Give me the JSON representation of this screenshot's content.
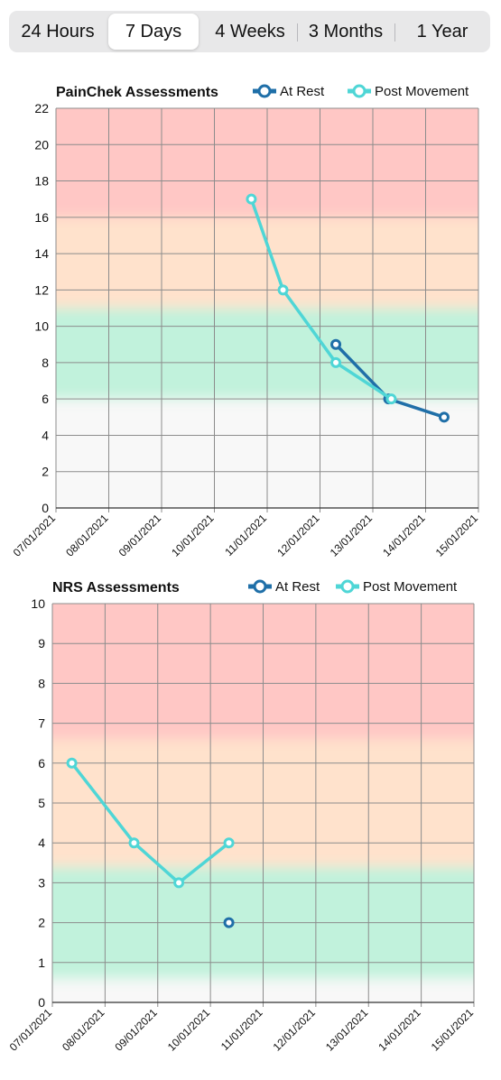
{
  "segments": [
    {
      "label": "24 Hours",
      "active": false
    },
    {
      "label": "7 Days",
      "active": true
    },
    {
      "label": "4 Weeks",
      "active": false
    },
    {
      "label": "3 Months",
      "active": false
    },
    {
      "label": "1 Year",
      "active": false
    }
  ],
  "colors": {
    "at_rest": "#1f6fa8",
    "post_movement": "#4fd6d6",
    "zone_red": "#ffc7c5",
    "zone_orange": "#ffe2cc",
    "zone_green": "#c1f2dc",
    "zone_none": "#f8f8f8",
    "grid": "#8c8c8c"
  },
  "chart_data": [
    {
      "type": "line",
      "title": "PainChek Assessments",
      "ylim": [
        0,
        22
      ],
      "yticks": [
        0,
        2,
        4,
        6,
        8,
        10,
        12,
        14,
        16,
        18,
        20,
        22
      ],
      "xticks": [
        "07/01/2021",
        "08/01/2021",
        "09/01/2021",
        "10/01/2021",
        "11/01/2021",
        "12/01/2021",
        "13/01/2021",
        "14/01/2021",
        "15/01/2021"
      ],
      "grid": true,
      "legend_placement": "top-right",
      "zones": [
        {
          "from": 0,
          "to": 6,
          "color": "zone_none"
        },
        {
          "from": 6,
          "to": 11,
          "color": "zone_green"
        },
        {
          "from": 11,
          "to": 16,
          "color": "zone_orange"
        },
        {
          "from": 16,
          "to": 22,
          "color": "zone_red"
        }
      ],
      "series": [
        {
          "name": "At Rest",
          "color": "at_rest",
          "points": [
            {
              "x": 5.3,
              "y": 9
            },
            {
              "x": 6.3,
              "y": 6
            },
            {
              "x": 7.35,
              "y": 5
            }
          ]
        },
        {
          "name": "Post Movement",
          "color": "post_movement",
          "points": [
            {
              "x": 3.7,
              "y": 17
            },
            {
              "x": 4.3,
              "y": 12
            },
            {
              "x": 5.3,
              "y": 8
            },
            {
              "x": 6.35,
              "y": 6
            }
          ]
        }
      ]
    },
    {
      "type": "line",
      "title": "NRS Assessments",
      "ylim": [
        0,
        10
      ],
      "yticks": [
        0,
        1,
        2,
        3,
        4,
        5,
        6,
        7,
        8,
        9,
        10
      ],
      "xticks": [
        "07/01/2021",
        "08/01/2021",
        "09/01/2021",
        "10/01/2021",
        "11/01/2021",
        "12/01/2021",
        "13/01/2021",
        "14/01/2021",
        "15/01/2021"
      ],
      "grid": true,
      "legend_placement": "top-right",
      "zones": [
        {
          "from": 0,
          "to": 0.6,
          "color": "zone_none"
        },
        {
          "from": 0.6,
          "to": 3.4,
          "color": "zone_green"
        },
        {
          "from": 3.4,
          "to": 6.6,
          "color": "zone_orange"
        },
        {
          "from": 6.6,
          "to": 10,
          "color": "zone_red"
        }
      ],
      "series": [
        {
          "name": "At Rest",
          "color": "at_rest",
          "points": [
            {
              "x": 3.35,
              "y": 2
            }
          ]
        },
        {
          "name": "Post Movement",
          "color": "post_movement",
          "points": [
            {
              "x": 0.37,
              "y": 6
            },
            {
              "x": 1.55,
              "y": 4
            },
            {
              "x": 2.4,
              "y": 3
            },
            {
              "x": 3.35,
              "y": 4
            }
          ]
        }
      ]
    }
  ]
}
